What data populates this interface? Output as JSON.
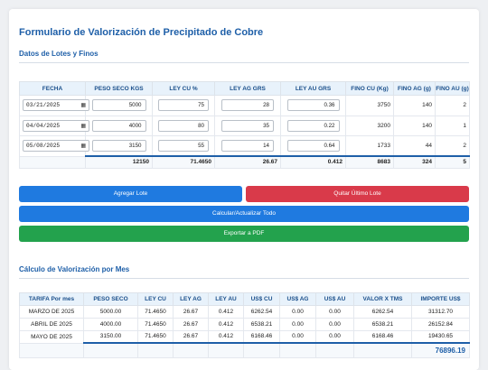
{
  "title": "Formulario de Valorización de Precipitado de Cobre",
  "lotes": {
    "section_title": "Datos de Lotes y Finos",
    "headers": [
      "FECHA",
      "PESO SECO KGS",
      "LEY CU %",
      "LEY AG GRS",
      "LEY AU GRS",
      "FINO CU (Kg)",
      "FINO AG (g)",
      "FINO AU (g)"
    ],
    "rows": [
      {
        "fecha": "03/21/2025",
        "peso": "5000",
        "ley_cu": "75",
        "ley_ag": "28",
        "ley_au": "0.36",
        "fino_cu": "3750",
        "fino_ag": "140",
        "fino_au": "2"
      },
      {
        "fecha": "04/04/2025",
        "peso": "4000",
        "ley_cu": "80",
        "ley_ag": "35",
        "ley_au": "0.22",
        "fino_cu": "3200",
        "fino_ag": "140",
        "fino_au": "1"
      },
      {
        "fecha": "05/08/2025",
        "peso": "3150",
        "ley_cu": "55",
        "ley_ag": "14",
        "ley_au": "0.64",
        "fino_cu": "1733",
        "fino_ag": "44",
        "fino_au": "2"
      }
    ],
    "totals": {
      "peso": "12150",
      "ley_cu": "71.4650",
      "ley_ag": "26.67",
      "ley_au": "0.412",
      "fino_cu": "8683",
      "fino_ag": "324",
      "fino_au": "5"
    }
  },
  "buttons": {
    "agregar": "Agregar Lote",
    "quitar": "Quitar Último Lote",
    "calcular": "Calcular/Actualizar Todo",
    "exportar": "Exportar a PDF"
  },
  "mes": {
    "section_title": "Cálculo de Valorización por Mes",
    "headers": [
      "TARIFA Por mes",
      "PESO SECO",
      "LEY CU",
      "LEY AG",
      "LEY AU",
      "US$ CU",
      "US$ AG",
      "US$ AU",
      "VALOR X TMS",
      "IMPORTE US$"
    ],
    "rows": [
      {
        "tarifa": "MARZO DE 2025",
        "peso": "5000.00",
        "ley_cu": "71.4650",
        "ley_ag": "26.67",
        "ley_au": "0.412",
        "usd_cu": "6262.54",
        "usd_ag": "0.00",
        "usd_au": "0.00",
        "valor": "6262.54",
        "importe": "31312.70"
      },
      {
        "tarifa": "ABRIL DE 2025",
        "peso": "4000.00",
        "ley_cu": "71.4650",
        "ley_ag": "26.67",
        "ley_au": "0.412",
        "usd_cu": "6538.21",
        "usd_ag": "0.00",
        "usd_au": "0.00",
        "valor": "6538.21",
        "importe": "26152.84"
      },
      {
        "tarifa": "MAYO DE 2025",
        "peso": "3150.00",
        "ley_cu": "71.4650",
        "ley_ag": "26.67",
        "ley_au": "0.412",
        "usd_cu": "6168.46",
        "usd_ag": "0.00",
        "usd_au": "0.00",
        "valor": "6168.46",
        "importe": "19430.65"
      }
    ],
    "grand_total": "76896.19"
  },
  "colors": {
    "accent": "#1e5fa8",
    "blue_button": "#1f7ae0",
    "red_button": "#d93a4a",
    "green_button": "#23a24d"
  },
  "icons": {
    "date_picker": "calendar-icon"
  }
}
